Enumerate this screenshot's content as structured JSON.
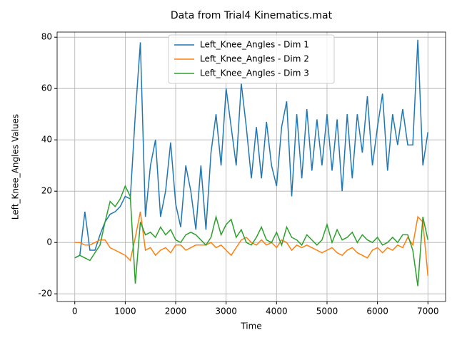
{
  "chart_data": {
    "type": "line",
    "title": "Data from Trial4 Kinematics.mat",
    "xlabel": "Time",
    "ylabel": "Left_Knee_Angles Values",
    "x": [
      0,
      100,
      200,
      300,
      400,
      500,
      600,
      700,
      800,
      900,
      1000,
      1100,
      1200,
      1300,
      1400,
      1500,
      1600,
      1700,
      1800,
      1900,
      2000,
      2100,
      2200,
      2300,
      2400,
      2500,
      2600,
      2700,
      2800,
      2900,
      3000,
      3100,
      3200,
      3300,
      3400,
      3500,
      3600,
      3700,
      3800,
      3900,
      4000,
      4100,
      4200,
      4300,
      4400,
      4500,
      4600,
      4700,
      4800,
      4900,
      5000,
      5100,
      5200,
      5300,
      5400,
      5500,
      5600,
      5700,
      5800,
      5900,
      6000,
      6100,
      6200,
      6300,
      6400,
      6500,
      6600,
      6700,
      6800,
      6900,
      7000
    ],
    "series": [
      {
        "name": "Left_Knee_Angles - Dim 1",
        "color": "#1f77b4",
        "values": [
          -6,
          -5,
          12,
          -3,
          -3,
          3,
          8,
          11,
          12,
          14,
          18,
          17,
          50,
          78,
          10,
          30,
          40,
          10,
          20,
          39,
          15,
          6,
          30,
          20,
          5,
          30,
          5,
          35,
          50,
          30,
          60,
          45,
          30,
          62,
          45,
          25,
          45,
          25,
          47,
          30,
          22,
          45,
          55,
          18,
          50,
          25,
          52,
          28,
          48,
          30,
          50,
          28,
          48,
          20,
          50,
          25,
          50,
          35,
          57,
          30,
          45,
          58,
          28,
          50,
          38,
          52,
          38,
          38,
          79,
          30,
          43
        ]
      },
      {
        "name": "Left_Knee_Angles - Dim 2",
        "color": "#ff7f0e",
        "values": [
          0,
          0,
          -1,
          -1,
          0,
          1,
          1,
          -2,
          -3,
          -4,
          -5,
          -7,
          2,
          12,
          -3,
          -2,
          -5,
          -3,
          -2,
          -4,
          -1,
          -1,
          -3,
          -2,
          -1,
          -1,
          -1,
          0,
          -2,
          -1,
          -3,
          -5,
          -2,
          1,
          2,
          0,
          -1,
          1,
          -1,
          0,
          -2,
          1,
          0,
          -3,
          -1,
          -2,
          -1,
          -2,
          -3,
          -4,
          -3,
          -2,
          -4,
          -5,
          -3,
          -2,
          -4,
          -5,
          -6,
          -3,
          -2,
          -4,
          -2,
          -3,
          -1,
          -2,
          2,
          -1,
          10,
          8,
          -13
        ]
      },
      {
        "name": "Left_Knee_Angles - Dim 3",
        "color": "#2ca02c",
        "values": [
          -6,
          -5,
          -6,
          -7,
          -4,
          -1,
          8,
          16,
          14,
          17,
          22,
          18,
          -16,
          8,
          3,
          4,
          2,
          6,
          3,
          5,
          1,
          0,
          3,
          4,
          3,
          1,
          -1,
          2,
          10,
          3,
          7,
          9,
          2,
          5,
          0,
          -1,
          2,
          6,
          1,
          0,
          4,
          -1,
          6,
          2,
          1,
          -1,
          3,
          1,
          -1,
          1,
          7,
          0,
          5,
          1,
          2,
          4,
          0,
          3,
          1,
          0,
          2,
          -1,
          0,
          2,
          0,
          3,
          3,
          -3,
          -17,
          10,
          1
        ]
      }
    ],
    "xlim": [
      -350,
      7350
    ],
    "xticks": [
      0,
      1000,
      2000,
      3000,
      4000,
      5000,
      6000,
      7000
    ],
    "ylim": [
      -23,
      82
    ],
    "yticks": [
      -20,
      0,
      20,
      40,
      60,
      80
    ],
    "grid": true,
    "legend": "upper center"
  }
}
